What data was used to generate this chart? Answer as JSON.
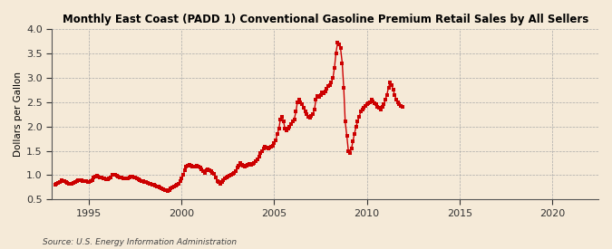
{
  "title": "Monthly East Coast (PADD 1) Conventional Gasoline Premium Retail Sales by All Sellers",
  "ylabel": "Dollars per Gallon",
  "source": "Source: U.S. Energy Information Administration",
  "xlim": [
    1993.0,
    2022.5
  ],
  "ylim": [
    0.5,
    4.0
  ],
  "yticks": [
    0.5,
    1.0,
    1.5,
    2.0,
    2.5,
    3.0,
    3.5,
    4.0
  ],
  "xticks": [
    1995,
    2000,
    2005,
    2010,
    2015,
    2020
  ],
  "background_color": "#f5ead8",
  "plot_bg_color": "#f5ead8",
  "line_color": "#cc0000",
  "marker": "s",
  "markersize": 2.5,
  "linewidth": 1.0,
  "data": [
    [
      1993.17,
      0.8
    ],
    [
      1993.25,
      0.82
    ],
    [
      1993.33,
      0.84
    ],
    [
      1993.42,
      0.86
    ],
    [
      1993.5,
      0.89
    ],
    [
      1993.58,
      0.88
    ],
    [
      1993.67,
      0.87
    ],
    [
      1993.75,
      0.86
    ],
    [
      1993.83,
      0.84
    ],
    [
      1993.92,
      0.83
    ],
    [
      1994.0,
      0.82
    ],
    [
      1994.08,
      0.83
    ],
    [
      1994.17,
      0.84
    ],
    [
      1994.25,
      0.86
    ],
    [
      1994.33,
      0.87
    ],
    [
      1994.42,
      0.89
    ],
    [
      1994.5,
      0.9
    ],
    [
      1994.58,
      0.89
    ],
    [
      1994.67,
      0.88
    ],
    [
      1994.75,
      0.87
    ],
    [
      1994.83,
      0.87
    ],
    [
      1994.92,
      0.86
    ],
    [
      1995.0,
      0.86
    ],
    [
      1995.08,
      0.87
    ],
    [
      1995.17,
      0.9
    ],
    [
      1995.25,
      0.96
    ],
    [
      1995.33,
      0.97
    ],
    [
      1995.42,
      0.98
    ],
    [
      1995.5,
      0.97
    ],
    [
      1995.58,
      0.96
    ],
    [
      1995.67,
      0.95
    ],
    [
      1995.75,
      0.94
    ],
    [
      1995.83,
      0.93
    ],
    [
      1995.92,
      0.91
    ],
    [
      1996.0,
      0.91
    ],
    [
      1996.08,
      0.93
    ],
    [
      1996.17,
      0.96
    ],
    [
      1996.25,
      1.0
    ],
    [
      1996.33,
      1.01
    ],
    [
      1996.42,
      1.0
    ],
    [
      1996.5,
      0.98
    ],
    [
      1996.58,
      0.97
    ],
    [
      1996.67,
      0.96
    ],
    [
      1996.75,
      0.95
    ],
    [
      1996.83,
      0.94
    ],
    [
      1996.92,
      0.93
    ],
    [
      1997.0,
      0.93
    ],
    [
      1997.08,
      0.94
    ],
    [
      1997.17,
      0.95
    ],
    [
      1997.25,
      0.97
    ],
    [
      1997.33,
      0.97
    ],
    [
      1997.42,
      0.96
    ],
    [
      1997.5,
      0.95
    ],
    [
      1997.58,
      0.94
    ],
    [
      1997.67,
      0.92
    ],
    [
      1997.75,
      0.9
    ],
    [
      1997.83,
      0.88
    ],
    [
      1997.92,
      0.87
    ],
    [
      1998.0,
      0.86
    ],
    [
      1998.08,
      0.85
    ],
    [
      1998.17,
      0.84
    ],
    [
      1998.25,
      0.83
    ],
    [
      1998.33,
      0.82
    ],
    [
      1998.42,
      0.81
    ],
    [
      1998.5,
      0.8
    ],
    [
      1998.58,
      0.78
    ],
    [
      1998.67,
      0.77
    ],
    [
      1998.75,
      0.76
    ],
    [
      1998.83,
      0.75
    ],
    [
      1998.92,
      0.73
    ],
    [
      1999.0,
      0.71
    ],
    [
      1999.08,
      0.7
    ],
    [
      1999.17,
      0.69
    ],
    [
      1999.25,
      0.68
    ],
    [
      1999.33,
      0.7
    ],
    [
      1999.42,
      0.73
    ],
    [
      1999.5,
      0.75
    ],
    [
      1999.58,
      0.77
    ],
    [
      1999.67,
      0.79
    ],
    [
      1999.75,
      0.8
    ],
    [
      1999.83,
      0.82
    ],
    [
      1999.92,
      0.87
    ],
    [
      2000.0,
      0.93
    ],
    [
      2000.08,
      1.0
    ],
    [
      2000.17,
      1.1
    ],
    [
      2000.25,
      1.17
    ],
    [
      2000.33,
      1.2
    ],
    [
      2000.42,
      1.22
    ],
    [
      2000.5,
      1.2
    ],
    [
      2000.58,
      1.18
    ],
    [
      2000.67,
      1.17
    ],
    [
      2000.75,
      1.18
    ],
    [
      2000.83,
      1.2
    ],
    [
      2000.92,
      1.18
    ],
    [
      2001.0,
      1.15
    ],
    [
      2001.08,
      1.12
    ],
    [
      2001.17,
      1.08
    ],
    [
      2001.25,
      1.05
    ],
    [
      2001.33,
      1.1
    ],
    [
      2001.42,
      1.12
    ],
    [
      2001.5,
      1.1
    ],
    [
      2001.58,
      1.08
    ],
    [
      2001.67,
      1.05
    ],
    [
      2001.75,
      1.02
    ],
    [
      2001.83,
      0.95
    ],
    [
      2001.92,
      0.88
    ],
    [
      2002.0,
      0.85
    ],
    [
      2002.08,
      0.83
    ],
    [
      2002.17,
      0.85
    ],
    [
      2002.25,
      0.9
    ],
    [
      2002.33,
      0.93
    ],
    [
      2002.42,
      0.95
    ],
    [
      2002.5,
      0.97
    ],
    [
      2002.58,
      0.99
    ],
    [
      2002.67,
      1.0
    ],
    [
      2002.75,
      1.02
    ],
    [
      2002.83,
      1.05
    ],
    [
      2002.92,
      1.08
    ],
    [
      2003.0,
      1.15
    ],
    [
      2003.08,
      1.2
    ],
    [
      2003.17,
      1.25
    ],
    [
      2003.25,
      1.22
    ],
    [
      2003.33,
      1.2
    ],
    [
      2003.42,
      1.18
    ],
    [
      2003.5,
      1.2
    ],
    [
      2003.58,
      1.22
    ],
    [
      2003.67,
      1.23
    ],
    [
      2003.75,
      1.22
    ],
    [
      2003.83,
      1.23
    ],
    [
      2003.92,
      1.25
    ],
    [
      2004.0,
      1.28
    ],
    [
      2004.08,
      1.32
    ],
    [
      2004.17,
      1.38
    ],
    [
      2004.25,
      1.45
    ],
    [
      2004.33,
      1.5
    ],
    [
      2004.42,
      1.55
    ],
    [
      2004.5,
      1.58
    ],
    [
      2004.58,
      1.57
    ],
    [
      2004.67,
      1.55
    ],
    [
      2004.75,
      1.56
    ],
    [
      2004.83,
      1.58
    ],
    [
      2004.92,
      1.6
    ],
    [
      2005.0,
      1.65
    ],
    [
      2005.08,
      1.72
    ],
    [
      2005.17,
      1.85
    ],
    [
      2005.25,
      1.95
    ],
    [
      2005.33,
      2.15
    ],
    [
      2005.42,
      2.2
    ],
    [
      2005.5,
      2.1
    ],
    [
      2005.58,
      1.95
    ],
    [
      2005.67,
      1.92
    ],
    [
      2005.75,
      1.95
    ],
    [
      2005.83,
      2.0
    ],
    [
      2005.92,
      2.05
    ],
    [
      2006.0,
      2.1
    ],
    [
      2006.08,
      2.15
    ],
    [
      2006.17,
      2.3
    ],
    [
      2006.25,
      2.5
    ],
    [
      2006.33,
      2.55
    ],
    [
      2006.42,
      2.5
    ],
    [
      2006.5,
      2.45
    ],
    [
      2006.58,
      2.38
    ],
    [
      2006.67,
      2.3
    ],
    [
      2006.75,
      2.25
    ],
    [
      2006.83,
      2.2
    ],
    [
      2006.92,
      2.18
    ],
    [
      2007.0,
      2.22
    ],
    [
      2007.08,
      2.25
    ],
    [
      2007.17,
      2.35
    ],
    [
      2007.25,
      2.55
    ],
    [
      2007.33,
      2.62
    ],
    [
      2007.42,
      2.6
    ],
    [
      2007.5,
      2.65
    ],
    [
      2007.58,
      2.7
    ],
    [
      2007.67,
      2.68
    ],
    [
      2007.75,
      2.72
    ],
    [
      2007.83,
      2.78
    ],
    [
      2007.92,
      2.82
    ],
    [
      2008.0,
      2.85
    ],
    [
      2008.08,
      2.9
    ],
    [
      2008.17,
      3.0
    ],
    [
      2008.25,
      3.2
    ],
    [
      2008.33,
      3.5
    ],
    [
      2008.42,
      3.72
    ],
    [
      2008.5,
      3.68
    ],
    [
      2008.58,
      3.6
    ],
    [
      2008.67,
      3.3
    ],
    [
      2008.75,
      2.8
    ],
    [
      2008.83,
      2.1
    ],
    [
      2008.92,
      1.8
    ],
    [
      2009.0,
      1.5
    ],
    [
      2009.08,
      1.45
    ],
    [
      2009.17,
      1.55
    ],
    [
      2009.25,
      1.7
    ],
    [
      2009.33,
      1.85
    ],
    [
      2009.42,
      2.0
    ],
    [
      2009.5,
      2.1
    ],
    [
      2009.58,
      2.2
    ],
    [
      2009.67,
      2.3
    ],
    [
      2009.75,
      2.35
    ],
    [
      2009.83,
      2.38
    ],
    [
      2009.92,
      2.42
    ],
    [
      2010.0,
      2.45
    ],
    [
      2010.08,
      2.48
    ],
    [
      2010.17,
      2.5
    ],
    [
      2010.25,
      2.55
    ],
    [
      2010.33,
      2.52
    ],
    [
      2010.42,
      2.48
    ],
    [
      2010.5,
      2.45
    ],
    [
      2010.58,
      2.4
    ],
    [
      2010.67,
      2.38
    ],
    [
      2010.75,
      2.35
    ],
    [
      2010.83,
      2.4
    ],
    [
      2010.92,
      2.45
    ],
    [
      2011.0,
      2.55
    ],
    [
      2011.08,
      2.65
    ],
    [
      2011.17,
      2.8
    ],
    [
      2011.25,
      2.9
    ],
    [
      2011.33,
      2.85
    ],
    [
      2011.42,
      2.75
    ],
    [
      2011.5,
      2.65
    ],
    [
      2011.58,
      2.55
    ],
    [
      2011.67,
      2.5
    ],
    [
      2011.75,
      2.45
    ],
    [
      2011.83,
      2.42
    ],
    [
      2011.92,
      2.4
    ]
  ]
}
